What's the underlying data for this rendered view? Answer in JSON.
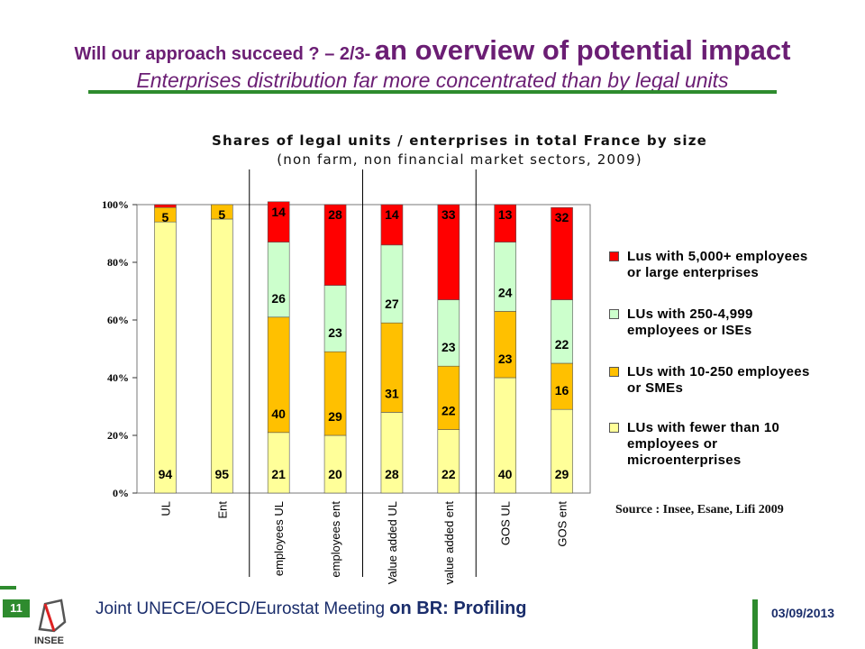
{
  "header": {
    "title_small": "Will our approach succeed ? – 2/3-",
    "title_big": "an overview of potential impact",
    "subtitle": "Enterprises distribution far more concentrated than by legal units"
  },
  "chart_data": {
    "type": "bar",
    "stacked": true,
    "title": "Shares of legal units / enterprises in total France by size",
    "subtitle": "(non farm, non financial market sectors, 2009)",
    "categories": [
      "UL",
      "Ent",
      "employees UL",
      "employees ent",
      "Value added UL",
      "value added ent",
      "GOS UL",
      "GOS ent"
    ],
    "series": [
      {
        "name": "LUs with fewer than 10 employees or microenterprises",
        "color": "#ffff99",
        "values": [
          94,
          95,
          21,
          20,
          28,
          22,
          40,
          29
        ],
        "labels": [
          "94",
          "95",
          "21",
          "20",
          "28",
          "22",
          "40",
          "29"
        ]
      },
      {
        "name": "LUs with 10-250 employees or SMEs",
        "color": "#ffc000",
        "values": [
          5,
          5,
          40,
          29,
          31,
          22,
          23,
          16
        ],
        "labels": [
          "5",
          "5",
          "40",
          "29",
          "31",
          "22",
          "23",
          "16"
        ]
      },
      {
        "name": "LUs with 250-4,999 employees or ISEs",
        "color": "#ccffcc",
        "values": [
          0,
          0,
          26,
          23,
          27,
          23,
          24,
          22
        ],
        "labels": [
          "",
          "",
          "26",
          "23",
          "27",
          "23",
          "24",
          "22"
        ]
      },
      {
        "name": "Lus with 5,000+ employees or large enterprises",
        "color": "#ff0000",
        "values": [
          1,
          0,
          14,
          28,
          14,
          33,
          13,
          32
        ],
        "labels": [
          "",
          "",
          "14",
          "28",
          "14",
          "33",
          "13",
          "32"
        ]
      }
    ],
    "y_ticks": [
      "0%",
      "20%",
      "40%",
      "60%",
      "80%",
      "100%"
    ],
    "ylim": [
      0,
      100
    ],
    "legend_position": "right",
    "source": "Source : Insee, Esane, Lifi 2009"
  },
  "legend": [
    {
      "line1": "Lus with 5,000+ employees",
      "line2": "or large enterprises",
      "line3": "",
      "color": "#ff0000"
    },
    {
      "line1": "LUs with 250-4,999",
      "line2": "employees or ISEs",
      "line3": "",
      "color": "#ccffcc"
    },
    {
      "line1": "LUs with 10-250 employees",
      "line2": "or SMEs",
      "line3": "",
      "color": "#ffc000"
    },
    {
      "line1": "LUs with fewer than 10",
      "line2": "employees or",
      "line3": "microenterprises",
      "color": "#ffff99"
    }
  ],
  "footer": {
    "page_number": "11",
    "meeting_prefix": "Joint UNECE/OECD/Eurostat Meeting",
    "meeting_suffix": "on BR: Profiling",
    "date": "03/09/2013",
    "logo_text": "INSEE"
  }
}
